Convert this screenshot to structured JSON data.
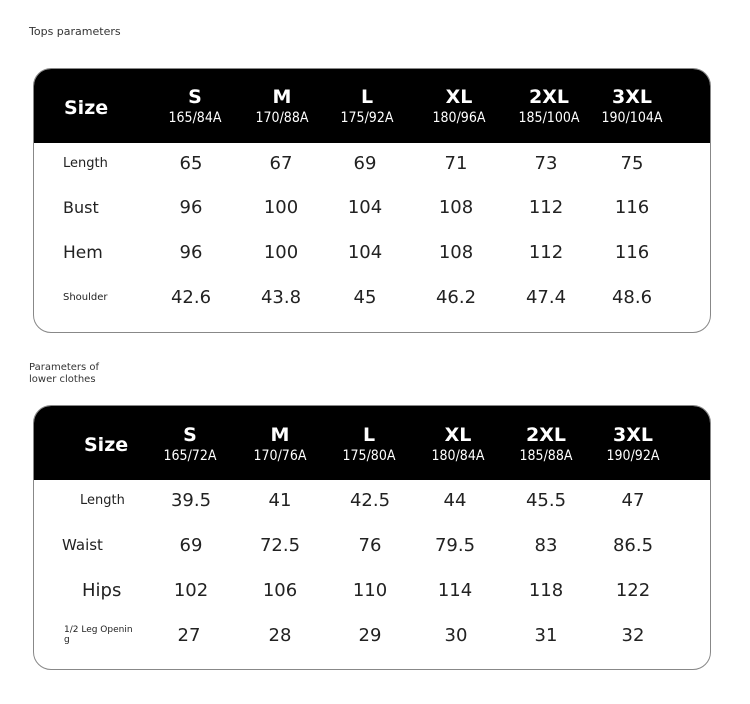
{
  "tops": {
    "caption": "Tops parameters",
    "header_label": "Size",
    "columns": [
      {
        "size": "S",
        "code": "165/84A"
      },
      {
        "size": "M",
        "code": "170/88A"
      },
      {
        "size": "L",
        "code": "175/92A"
      },
      {
        "size": "XL",
        "code": "180/96A"
      },
      {
        "size": "2XL",
        "code": "185/100A"
      },
      {
        "size": "3XL",
        "code": "190/104A"
      }
    ],
    "rows": [
      {
        "label": "Length",
        "values": [
          "65",
          "67",
          "69",
          "71",
          "73",
          "75"
        ]
      },
      {
        "label": "Bust",
        "values": [
          "96",
          "100",
          "104",
          "108",
          "112",
          "116"
        ]
      },
      {
        "label": "Hem",
        "values": [
          "96",
          "100",
          "104",
          "108",
          "112",
          "116"
        ]
      },
      {
        "label": "Shoulder",
        "values": [
          "42.6",
          "43.8",
          "45",
          "46.2",
          "47.4",
          "48.6"
        ]
      }
    ]
  },
  "bottoms": {
    "caption_line1": "Parameters of",
    "caption_line2": "lower clothes",
    "header_label": "Size",
    "columns": [
      {
        "size": "S",
        "code": "165/72A"
      },
      {
        "size": "M",
        "code": "170/76A"
      },
      {
        "size": "L",
        "code": "175/80A"
      },
      {
        "size": "XL",
        "code": "180/84A"
      },
      {
        "size": "2XL",
        "code": "185/88A"
      },
      {
        "size": "3XL",
        "code": "190/92A"
      }
    ],
    "rows": [
      {
        "label": "Length",
        "values": [
          "39.5",
          "41",
          "42.5",
          "44",
          "45.5",
          "47"
        ]
      },
      {
        "label": "Waist",
        "values": [
          "69",
          "72.5",
          "76",
          "79.5",
          "83",
          "86.5"
        ]
      },
      {
        "label": "Hips",
        "values": [
          "102",
          "106",
          "110",
          "114",
          "118",
          "122"
        ]
      },
      {
        "label_line1": "1/2 Leg Openin",
        "label_line2": "g",
        "values": [
          "27",
          "28",
          "29",
          "30",
          "31",
          "32"
        ]
      }
    ]
  }
}
